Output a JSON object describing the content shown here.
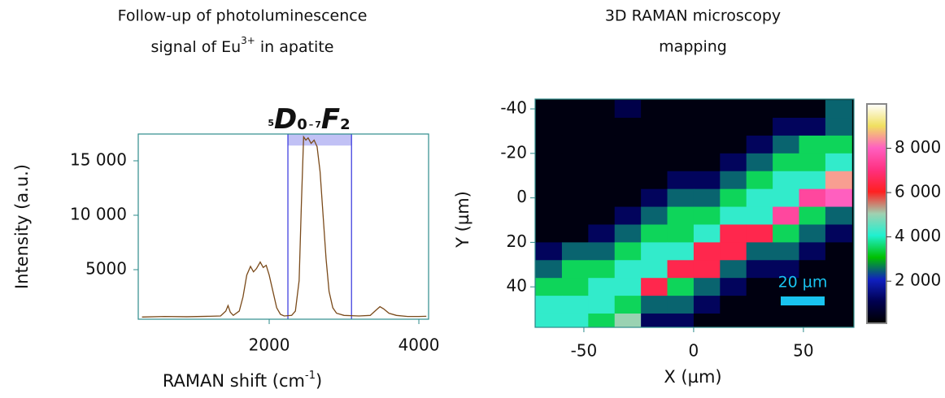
{
  "chart_data": [
    {
      "type": "line",
      "title": [
        "Follow-up of photoluminescence",
        "signal of Eu",
        "3+",
        " in apatite"
      ],
      "annotation": [
        "5",
        "D",
        "0",
        "–",
        "7",
        "F",
        "2"
      ],
      "ylabel": "Intensity (a.u.)",
      "xlabel": [
        "RAMAN shift (cm",
        "-1",
        ")"
      ],
      "color": "#7a4a1a",
      "frame_color": "#2e8b8b",
      "highlight_color": "#3333dd",
      "highlight": {
        "range": [
          2250,
          3100
        ],
        "band_bottom": 16400
      },
      "xlim": [
        250,
        4130
      ],
      "ylim": [
        450,
        17460
      ],
      "xticks": [
        2000,
        4000
      ],
      "yticks": [
        5000,
        {
          "value": 10000,
          "label": "10 000"
        },
        {
          "value": 15000,
          "label": "15 000"
        }
      ],
      "x": [
        300,
        600,
        900,
        1200,
        1350,
        1420,
        1450,
        1480,
        1520,
        1600,
        1650,
        1700,
        1750,
        1790,
        1830,
        1880,
        1920,
        1960,
        2000,
        2050,
        2100,
        2150,
        2200,
        2300,
        2350,
        2400,
        2430,
        2460,
        2490,
        2520,
        2560,
        2600,
        2640,
        2680,
        2720,
        2760,
        2800,
        2850,
        2900,
        3000,
        3200,
        3350,
        3430,
        3480,
        3530,
        3600,
        3700,
        3850,
        4000,
        4100
      ],
      "values": [
        650,
        700,
        680,
        720,
        750,
        1200,
        1700,
        1100,
        800,
        1200,
        2500,
        4500,
        5300,
        4800,
        5100,
        5700,
        5200,
        5400,
        4500,
        3000,
        1500,
        900,
        750,
        800,
        1200,
        4000,
        11000,
        17200,
        16900,
        17100,
        16600,
        16900,
        16300,
        14000,
        10000,
        6000,
        3000,
        1500,
        1000,
        800,
        750,
        800,
        1300,
        1600,
        1400,
        1000,
        800,
        700,
        700,
        720
      ]
    },
    {
      "type": "heatmap",
      "title": [
        "3D RAMAN microscopy",
        "mapping"
      ],
      "xlabel": "X (µm)",
      "ylabel": "Y (µm)",
      "frame_color": "#2e8b8b",
      "xlim": [
        -72.2,
        73
      ],
      "ylim": [
        58.2,
        -44.4
      ],
      "xticks": [
        -50,
        0,
        50
      ],
      "yticks": [
        -40,
        -20,
        0,
        20,
        40
      ],
      "clim": [
        100,
        10000
      ],
      "cticks": [
        {
          "value": 2000,
          "label": "2 000"
        },
        {
          "value": 4000,
          "label": "4 000"
        },
        {
          "value": 6000,
          "label": "6 000"
        },
        {
          "value": 8000,
          "label": "8 000"
        }
      ],
      "colormap": [
        "#000000",
        "#000050",
        "#1020c0",
        "#00c000",
        "#20f0d0",
        "#a0d0b0",
        "#ff2020",
        "#ff3080",
        "#ff60c0",
        "#f0e060",
        "#ffffff"
      ],
      "scalebar": {
        "label": "20 µm",
        "length": 20,
        "color": "#19c3f0"
      },
      "x": [
        -66,
        -54,
        -42,
        -30,
        -18,
        -6,
        6,
        18,
        30,
        42,
        54,
        66
      ],
      "y": [
        -40,
        -32,
        -24,
        -16,
        -8,
        0,
        8,
        16,
        24,
        32,
        40,
        48,
        56
      ],
      "z": [
        [
          300,
          300,
          300,
          1000,
          300,
          300,
          300,
          300,
          300,
          300,
          300,
          2500
        ],
        [
          300,
          300,
          300,
          300,
          300,
          300,
          300,
          300,
          300,
          1200,
          1200,
          2500
        ],
        [
          300,
          300,
          300,
          300,
          300,
          300,
          300,
          300,
          1200,
          2500,
          3500,
          3500
        ],
        [
          300,
          300,
          300,
          300,
          300,
          300,
          300,
          1200,
          2500,
          3500,
          3500,
          4200
        ],
        [
          300,
          300,
          300,
          300,
          300,
          1200,
          1200,
          2500,
          3500,
          4200,
          4200,
          8500
        ],
        [
          300,
          300,
          300,
          300,
          1200,
          2500,
          2500,
          3500,
          4200,
          4200,
          7500,
          8000
        ],
        [
          300,
          300,
          300,
          1200,
          2500,
          3500,
          3500,
          4200,
          4200,
          7500,
          3500,
          2500
        ],
        [
          300,
          300,
          1200,
          2500,
          3500,
          3500,
          4200,
          6500,
          6500,
          3500,
          2500,
          1200
        ],
        [
          1200,
          2500,
          2500,
          3500,
          4200,
          4200,
          6500,
          6500,
          2500,
          2500,
          1200,
          300
        ],
        [
          2500,
          3500,
          3500,
          4200,
          4200,
          6500,
          6500,
          2500,
          1200,
          1200,
          300,
          300
        ],
        [
          3500,
          3500,
          4200,
          4200,
          6500,
          3500,
          2500,
          1200,
          300,
          300,
          300,
          300
        ],
        [
          4200,
          4200,
          4200,
          3500,
          2500,
          2500,
          1200,
          300,
          300,
          300,
          300,
          300
        ],
        [
          4200,
          4200,
          3500,
          5000,
          1200,
          1200,
          300,
          300,
          300,
          300,
          300,
          300
        ]
      ]
    }
  ]
}
